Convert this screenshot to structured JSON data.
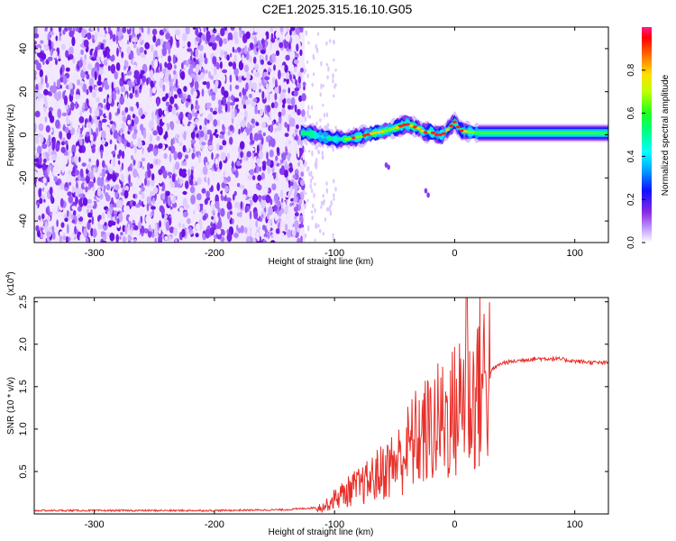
{
  "title": "C2E1.2025.315.16.10.G05",
  "colors": {
    "snr_line": "#e8302a",
    "noise_purple": "#8a3cf0",
    "signal_band": [
      "#4a1cd8",
      "#1aa0ff",
      "#00ffd0",
      "#3cff3c",
      "#ffd000",
      "#ff2020"
    ]
  },
  "chart_data": [
    {
      "type": "heatmap",
      "xlabel": "Height of straight line (km)",
      "ylabel": "Frequency (Hz)",
      "xlim": [
        -350,
        128
      ],
      "ylim": [
        -50,
        50
      ],
      "xticks": [
        -300,
        -200,
        -100,
        0,
        100
      ],
      "xtick_labels": [
        "-300",
        "-200",
        "-100",
        "0",
        "100"
      ],
      "yticks": [
        -40,
        -20,
        0,
        20,
        40
      ],
      "ytick_labels": [
        "-40",
        "-20",
        "0",
        "20",
        "40"
      ],
      "colorbar": {
        "label": "Normalized spectral amplitude",
        "range": [
          0,
          1
        ],
        "ticks": [
          0.0,
          0.2,
          0.4,
          0.6,
          0.8
        ],
        "tick_labels": [
          "0.0",
          "0.2",
          "0.4",
          "0.6",
          "0.8"
        ],
        "colormap": [
          "#ffffff",
          "#9b30ff",
          "#0000ff",
          "#00bfff",
          "#00ffff",
          "#00ff7f",
          "#00ff00",
          "#7fff00",
          "#ffff00",
          "#ffa500",
          "#ff0000",
          "#ff1493"
        ]
      },
      "noise_region_x": [
        -350,
        -125
      ],
      "signal_centerline": {
        "x": [
          -128,
          -120,
          -110,
          -100,
          -90,
          -80,
          -70,
          -60,
          -50,
          -45,
          -40,
          -35,
          -30,
          -25,
          -20,
          -15,
          -10,
          -5,
          0,
          5,
          10,
          20,
          40,
          60,
          80,
          100,
          128
        ],
        "freq": [
          1,
          0.5,
          -1,
          -2,
          -2,
          -1,
          0.5,
          1.5,
          3,
          4,
          5,
          4,
          3,
          1,
          1.5,
          0,
          0,
          3,
          6,
          2,
          1.5,
          0.8,
          0.8,
          0.8,
          0.8,
          0.8,
          0.8
        ]
      },
      "grid": false,
      "legend": "colorbar-right"
    },
    {
      "type": "line",
      "xlabel": "Height of straight line (km)",
      "ylabel": "SNR (10 * v/v)",
      "y_multiplier_label": "(x10",
      "y_multiplier_exp": "4",
      "y_multiplier_close": ")",
      "xlim": [
        -350,
        128
      ],
      "ylim": [
        0,
        2.55
      ],
      "xticks": [
        -300,
        -200,
        -100,
        0,
        100
      ],
      "xtick_labels": [
        "-300",
        "-200",
        "-100",
        "0",
        "100"
      ],
      "yticks": [
        0.5,
        1.0,
        1.5,
        2.0,
        2.5
      ],
      "ytick_labels": [
        "0.5",
        "1.0",
        "1.5",
        "2.0",
        "2.5"
      ],
      "series_envelope": {
        "x": [
          -350,
          -200,
          -140,
          -110,
          -105,
          -100,
          -95,
          -90,
          -85,
          -80,
          -75,
          -70,
          -65,
          -60,
          -55,
          -50,
          -45,
          -40,
          -35,
          -30,
          -25,
          -20,
          -15,
          -10,
          -5,
          0,
          5,
          8,
          10,
          12,
          15,
          18,
          20,
          25,
          30,
          35,
          40,
          50,
          60,
          70,
          80,
          90,
          100,
          110,
          120,
          128
        ],
        "y": [
          0.04,
          0.04,
          0.05,
          0.08,
          0.12,
          0.18,
          0.22,
          0.25,
          0.3,
          0.32,
          0.35,
          0.4,
          0.45,
          0.5,
          0.55,
          0.6,
          0.65,
          0.75,
          0.85,
          0.9,
          0.95,
          1.0,
          1.05,
          1.1,
          1.15,
          1.2,
          1.3,
          1.45,
          1.35,
          1.3,
          1.35,
          1.45,
          1.55,
          1.6,
          1.68,
          1.74,
          1.78,
          1.8,
          1.82,
          1.83,
          1.83,
          1.82,
          1.8,
          1.79,
          1.78,
          1.78
        ]
      },
      "spike": {
        "x": 10,
        "y": 2.6
      },
      "grid": false
    }
  ]
}
